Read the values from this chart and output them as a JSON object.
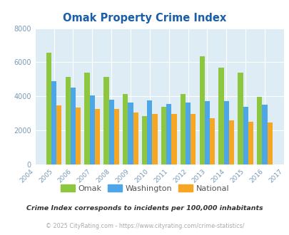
{
  "title": "Omak Property Crime Index",
  "title_color": "#1a5fa8",
  "years": [
    2004,
    2005,
    2006,
    2007,
    2008,
    2009,
    2010,
    2011,
    2012,
    2013,
    2014,
    2015,
    2016,
    2017
  ],
  "omak": [
    null,
    6550,
    5150,
    5400,
    5150,
    4150,
    2850,
    3400,
    4150,
    6350,
    5700,
    5400,
    3950,
    null
  ],
  "washington": [
    null,
    4900,
    4500,
    4050,
    3800,
    3650,
    3750,
    3550,
    3650,
    3700,
    3700,
    3400,
    3500,
    null
  ],
  "national": [
    null,
    3450,
    3350,
    3250,
    3250,
    3050,
    2950,
    2950,
    2950,
    2700,
    2600,
    2500,
    2450,
    null
  ],
  "bar_width": 0.27,
  "omak_color": "#8dc63f",
  "washington_color": "#4da6e8",
  "national_color": "#f5a623",
  "bg_color": "#deedf5",
  "grid_color": "#ffffff",
  "ylim": [
    0,
    8000
  ],
  "yticks": [
    0,
    2000,
    4000,
    6000,
    8000
  ],
  "subtitle": "Crime Index corresponds to incidents per 100,000 inhabitants",
  "footnote": "© 2025 CityRating.com - https://www.cityrating.com/crime-statistics/",
  "legend_labels": [
    "Omak",
    "Washington",
    "National"
  ],
  "tick_color": "#7a9ab5"
}
